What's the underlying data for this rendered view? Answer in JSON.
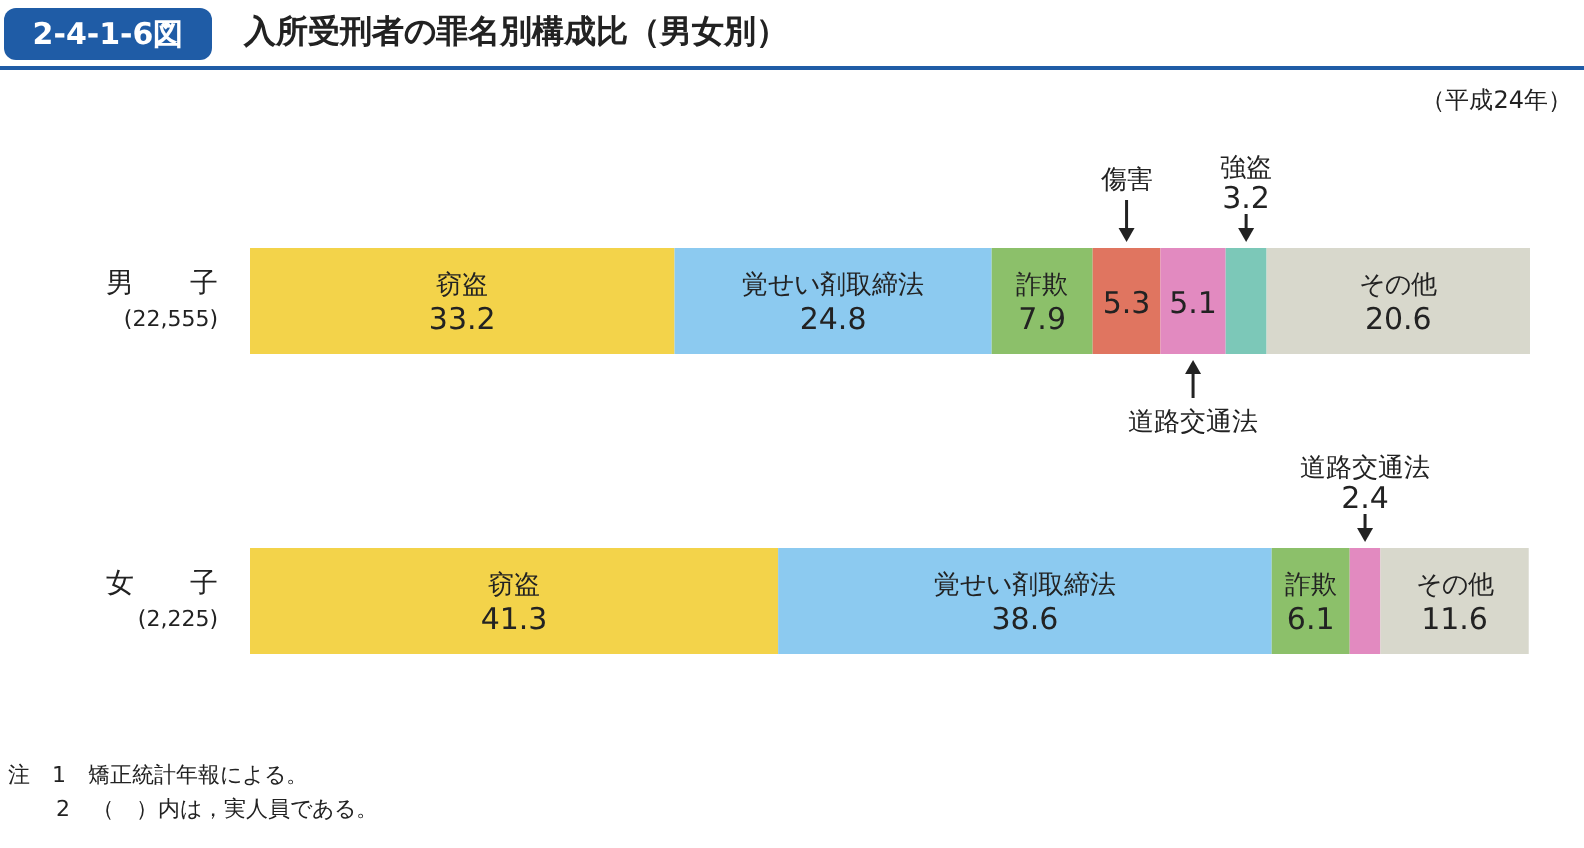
{
  "chart_data": {
    "type": "bar",
    "orientation": "horizontal",
    "stacked": true,
    "title": "入所受刑者の罪名別構成比（男女別）",
    "annotations": [
      "2-4-1-6図",
      "（平成24年）",
      "注　1　矯正統計年報による。",
      "2　（　）内は，実人員である。"
    ],
    "categories": [
      "男　　子\n(22,555)",
      "女　　子\n(2,225)"
    ],
    "series": [
      {
        "name": "窃盗",
        "color": "#f3d34a",
        "values": [
          33.2,
          41.3
        ]
      },
      {
        "name": "覚せい剤取締法",
        "color": "#8ccaf0",
        "values": [
          24.8,
          38.6
        ]
      },
      {
        "name": "詐欺",
        "color": "#8cc06a",
        "values": [
          7.9,
          6.1
        ]
      },
      {
        "name": "傷害",
        "color": "#e07560",
        "values": [
          5.3,
          null
        ]
      },
      {
        "name": "道路交通法",
        "color": "#e28ac0",
        "values": [
          5.1,
          2.4
        ]
      },
      {
        "name": "強盗",
        "color": "#7cc8b8",
        "values": [
          3.2,
          null
        ]
      },
      {
        "name": "その他",
        "color": "#d8d8cc",
        "values": [
          20.6,
          11.6
        ]
      }
    ],
    "xlim": [
      0,
      100.1
    ],
    "tick_labels": "y",
    "data_labels": true,
    "legend": false,
    "grid": false
  }
}
